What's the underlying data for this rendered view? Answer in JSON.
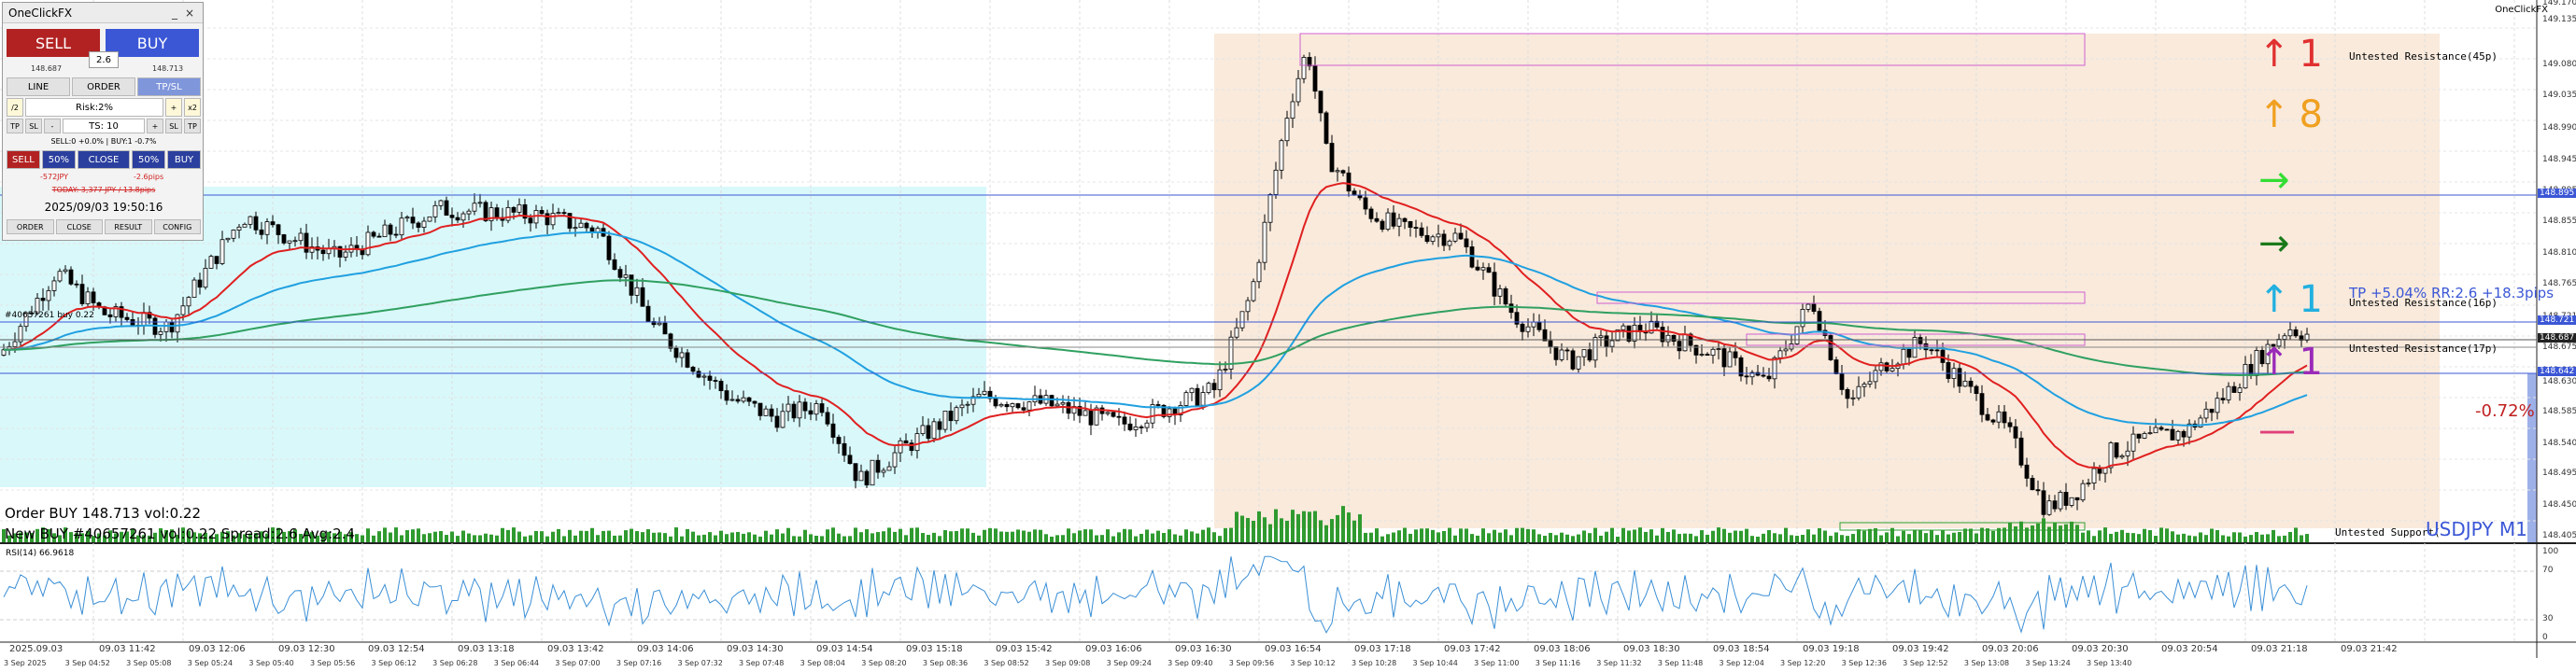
{
  "panel": {
    "title": "OneClickFX",
    "sell_label": "SELL",
    "buy_label": "BUY",
    "spread": "2.6",
    "bid": "148.687",
    "ask": "148.713",
    "tabs": [
      "LINE",
      "ORDER",
      "TP/SL"
    ],
    "lot_row": [
      "/2",
      "Risk:2%",
      "+",
      "x2"
    ],
    "ts_row": [
      "TP",
      "SL",
      "-",
      "TS: 10",
      "+",
      "SL",
      "TP"
    ],
    "pl_text": "SELL:0 +0.0% | BUY:1 -0.7%",
    "action_row": [
      "SELL",
      "50%",
      "CLOSE",
      "50%",
      "BUY"
    ],
    "pl_jpy": "-572JPY",
    "pl_pips": "-2.6pips",
    "today_text": "TODAY: 3,377 JPY / 13.8pips",
    "datetime": "2025/09/03  19:50:16",
    "footer_tabs": [
      "ORDER",
      "CLOSE",
      "RESULT",
      "CONFIG"
    ]
  },
  "top_right_label": "OneClickFX",
  "chart": {
    "symbol": "USDJPY M1",
    "position_label": "#40657261 buy 0.22",
    "order_text": "Order BUY 148.713 vol:0.22",
    "new_text": "New BUY #40657261 vol:0.22 Spread:2.6 Avg:2.4",
    "tp_text": "TP +5.04% RR:2.6 +18.3pips",
    "loss_pct": "-0.72%",
    "resistance_labels": [
      "Untested Resistance(45p)",
      "Untested Resistance(16p)",
      "Untested Resistance(17p)"
    ],
    "support_label": "Untested Support(",
    "rsi_label": "RSI(14) 66.9618",
    "colors": {
      "up": "#d83030",
      "up2": "#f0a020",
      "green1": "#22cc22",
      "green2": "#1a7a1a",
      "cyan": "#22b0e0",
      "purple": "#9a2ab8",
      "magenta": "#e0407a",
      "ema_fast": "#e02020",
      "ema_mid": "#20a0e0",
      "ema_slow": "#30a060"
    }
  },
  "signals": [
    {
      "icon": "up-arrow-icon",
      "text": "1",
      "color": "#e03030"
    },
    {
      "icon": "up-arrow-icon",
      "text": "8",
      "color": "#f0a020"
    },
    {
      "icon": "right-arrow-icon",
      "text": "",
      "color": "#33dd33"
    },
    {
      "icon": "right-arrow-icon",
      "text": "",
      "color": "#1a7a1a"
    },
    {
      "icon": "up-arrow-icon",
      "text": "1",
      "color": "#22b0e0"
    },
    {
      "icon": "up-arrow-icon",
      "text": "1",
      "color": "#9a2ab8"
    },
    {
      "icon": "dash-icon",
      "text": "",
      "color": "#e0407a"
    }
  ],
  "price_axis": [
    "149.170",
    "149.135",
    "149.080",
    "149.035",
    "148.990",
    "148.945",
    "148.895",
    "148.855",
    "148.810",
    "148.765",
    "148.721",
    "148.675",
    "148.642",
    "148.630",
    "148.585",
    "148.540",
    "148.495",
    "148.450",
    "148.405"
  ],
  "price_axis_tags": [
    {
      "label": "148.895",
      "color": "#3b57d6"
    },
    {
      "label": "148.721",
      "color": "#3b57d6"
    },
    {
      "label": "148.687",
      "color": "#222222"
    },
    {
      "label": "148.642",
      "color": "#3b57d6"
    }
  ],
  "rsi_axis": [
    "100",
    "70",
    "30",
    "0"
  ],
  "time_axis_top": [
    "2025.09.03",
    "09.03 11:42",
    "09.03 12:06",
    "09.03 12:30",
    "09.03 12:54",
    "09.03 13:18",
    "09.03 13:42",
    "09.03 14:06",
    "09.03 14:30",
    "09.03 14:54",
    "09.03 15:18",
    "09.03 15:42",
    "09.03 16:06",
    "09.03 16:30",
    "09.03 16:54",
    "09.03 17:18",
    "09.03 17:42",
    "09.03 18:06",
    "09.03 18:30",
    "09.03 18:54",
    "09.03 19:18",
    "09.03 19:42",
    "09.03 20:06",
    "09.03 20:30",
    "09.03 20:54",
    "09.03 21:18",
    "09.03 21:42"
  ],
  "time_axis_bottom": [
    "3 Sep 2025",
    "3 Sep 04:52",
    "3 Sep 05:08",
    "3 Sep 05:24",
    "3 Sep 05:40",
    "3 Sep 05:56",
    "3 Sep 06:12",
    "3 Sep 06:28",
    "3 Sep 06:44",
    "3 Sep 07:00",
    "3 Sep 07:16",
    "3 Sep 07:32",
    "3 Sep 07:48",
    "3 Sep 08:04",
    "3 Sep 08:20",
    "3 Sep 08:36",
    "3 Sep 08:52",
    "3 Sep 09:08",
    "3 Sep 09:24",
    "3 Sep 09:40",
    "3 Sep 09:56",
    "3 Sep 10:12",
    "3 Sep 10:28",
    "3 Sep 10:44",
    "3 Sep 11:00",
    "3 Sep 11:16",
    "3 Sep 11:32",
    "3 Sep 11:48",
    "3 Sep 12:04",
    "3 Sep 12:20",
    "3 Sep 12:36",
    "3 Sep 12:52",
    "3 Sep 13:08",
    "3 Sep 13:24",
    "3 Sep 13:40"
  ]
}
